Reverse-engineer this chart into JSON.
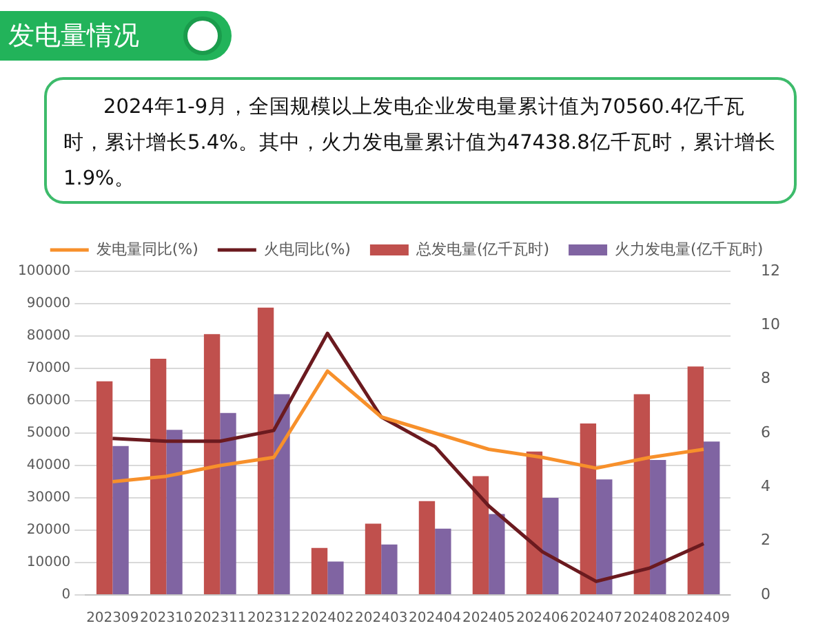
{
  "chart_data": {
    "type": "bar",
    "title": "发电量情况",
    "subtitle": "2024年1-9月，全国规模以上发电企业发电量累计值为70560.4亿千瓦时，累计增长5.4%。其中，火力发电量累计值为47438.8亿千瓦时，累计增长1.9%。",
    "categories": [
      "202309",
      "202310",
      "202311",
      "202312",
      "202402",
      "202403",
      "202404",
      "202405",
      "202406",
      "202407",
      "202408",
      "202409"
    ],
    "series": [
      {
        "name": "总发电量(亿千瓦时)",
        "color": "#c0504d",
        "values": [
          66000,
          73000,
          80600,
          88800,
          14500,
          22000,
          29000,
          36700,
          44300,
          53000,
          62000,
          70560
        ]
      },
      {
        "name": "火力发电量(亿千瓦时)",
        "color": "#8064a2",
        "values": [
          46000,
          51000,
          56200,
          62000,
          10300,
          15600,
          20500,
          25000,
          30000,
          35700,
          41700,
          47400
        ]
      },
      {
        "name": "发电量同比(%)",
        "type": "line",
        "axis": "y2",
        "color": "#f7902b",
        "values": [
          4.2,
          4.4,
          4.8,
          5.1,
          8.3,
          6.6,
          6.0,
          5.4,
          5.1,
          4.7,
          5.1,
          5.4
        ]
      },
      {
        "name": "火电同比(%)",
        "type": "line",
        "axis": "y2",
        "color": "#6b1a1f",
        "values": [
          5.8,
          5.7,
          5.7,
          6.1,
          9.7,
          6.6,
          5.5,
          3.3,
          1.6,
          0.5,
          1.0,
          1.9
        ]
      }
    ],
    "ylim": [
      0,
      100000
    ],
    "yticks": [
      0,
      10000,
      20000,
      30000,
      40000,
      50000,
      60000,
      70000,
      80000,
      90000,
      100000
    ],
    "y2lim": [
      0,
      12
    ],
    "y2ticks": [
      0,
      2,
      4,
      6,
      8,
      10,
      12
    ],
    "grid": "y",
    "legend": "top",
    "marker": "none"
  }
}
